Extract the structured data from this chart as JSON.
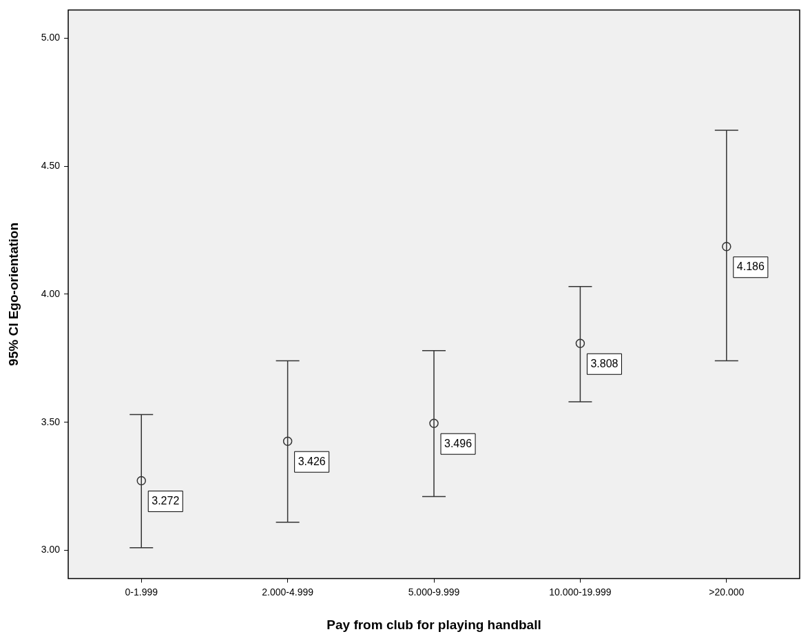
{
  "chart_data": {
    "type": "scatter",
    "xlabel": "Pay from club for playing handball",
    "ylabel": "95% CI Ego-orientation",
    "categories": [
      "0-1.999",
      "2.000-4.999",
      "5.000-9.999",
      "10.000-19.999",
      ">20.000"
    ],
    "values": [
      3.272,
      3.426,
      3.496,
      3.808,
      4.186
    ],
    "errors": [
      [
        3.01,
        3.53
      ],
      [
        3.11,
        3.74
      ],
      [
        3.21,
        3.78
      ],
      [
        3.58,
        4.03
      ],
      [
        3.74,
        4.64
      ]
    ],
    "color": "#333333",
    "marker": "circle",
    "data_labels": true,
    "grid": false,
    "legend": false,
    "ylim": [
      2.89,
      5.11
    ],
    "yticks": [
      {
        "value": 3,
        "label": "3.00"
      },
      {
        "value": 3.5,
        "label": "3.50"
      },
      {
        "value": 4,
        "label": "4.00"
      },
      {
        "value": 4.5,
        "label": "4.50"
      },
      {
        "value": 5,
        "label": "5.00"
      }
    ]
  }
}
